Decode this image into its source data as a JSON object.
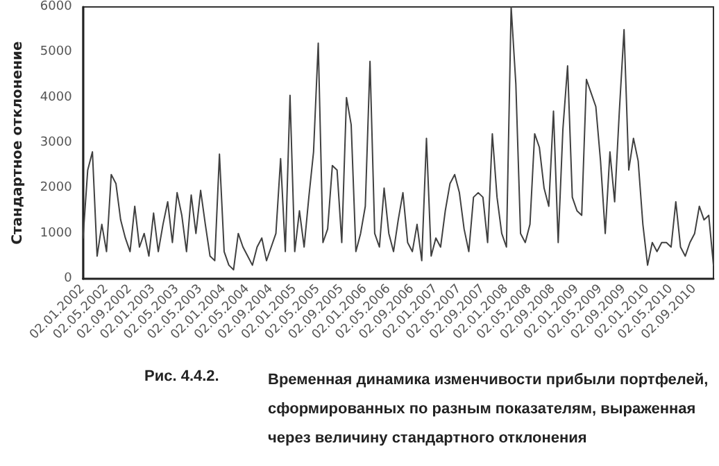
{
  "chart_data": {
    "type": "line",
    "ylabel": "Стандартное отклонение",
    "annotations": [
      "Рис. 4.4.2.",
      "Временная динамика изменчивости прибыли портфелей, сформированных по разным показателям, выраженная через величину стандартного отклонения"
    ],
    "categories": [
      "02.01.2002",
      null,
      null,
      null,
      null,
      "02.05.2002",
      null,
      null,
      null,
      null,
      "02.09.2002",
      null,
      null,
      null,
      null,
      "02.01.2003",
      null,
      null,
      null,
      null,
      "02.05.2003",
      null,
      null,
      null,
      null,
      "02.05.2003",
      null,
      null,
      null,
      null,
      "02.01.2004",
      null,
      null,
      null,
      null,
      "02.05.2004",
      null,
      null,
      null,
      null,
      "02.09.2004",
      null,
      null,
      null,
      null,
      "02.01.2005",
      null,
      null,
      null,
      null,
      "02.05.2005",
      null,
      null,
      null,
      null,
      "02.09.2005",
      null,
      null,
      null,
      null,
      "02.01.2006",
      null,
      null,
      null,
      null,
      "02.05.2006",
      null,
      null,
      null,
      null,
      "02.09.2006",
      null,
      null,
      null,
      null,
      "02.01.2007",
      null,
      null,
      null,
      null,
      "02.05.2007",
      null,
      null,
      null,
      null,
      "02.09.2007",
      null,
      null,
      null,
      null,
      "02.01.2008",
      null,
      null,
      null,
      null,
      "02.05.2008",
      null,
      null,
      null,
      null,
      "02.09.2008",
      null,
      null,
      null,
      null,
      "02.01.2009",
      null,
      null,
      null,
      null,
      "02.05.2009",
      null,
      null,
      null,
      null,
      "02.09.2009",
      null,
      null,
      null,
      null,
      "02.01.2010",
      null,
      null,
      null,
      null,
      "02.05.2010",
      null,
      null,
      null,
      null,
      "02.09.2010",
      null,
      null,
      null,
      null
    ],
    "series": [
      {
        "color": "#404040",
        "values": [
          900,
          2400,
          2800,
          500,
          1200,
          600,
          2300,
          2100,
          1300,
          900,
          600,
          1600,
          700,
          1000,
          500,
          1450,
          600,
          1200,
          1700,
          800,
          1900,
          1400,
          600,
          1850,
          1000,
          1950,
          1200,
          500,
          400,
          2750,
          600,
          300,
          200,
          1000,
          700,
          500,
          300,
          700,
          900,
          400,
          700,
          1000,
          2650,
          600,
          4050,
          600,
          1500,
          700,
          1800,
          2800,
          5200,
          800,
          1100,
          2500,
          2400,
          800,
          4000,
          3400,
          600,
          1000,
          1600,
          4800,
          1000,
          700,
          2000,
          1000,
          600,
          1300,
          1900,
          800,
          600,
          1200,
          400,
          3100,
          500,
          900,
          700,
          1500,
          2100,
          2300,
          1900,
          1100,
          600,
          1800,
          1900,
          1800,
          800,
          3200,
          1800,
          1000,
          700,
          6000,
          4300,
          1000,
          800,
          1200,
          3200,
          2900,
          2000,
          1600,
          3700,
          800,
          3300,
          4700,
          1800,
          1500,
          1400,
          4400,
          4100,
          3800,
          2600,
          1000,
          2800,
          1700,
          3700,
          5500,
          2400,
          3100,
          2600,
          1200,
          300,
          800,
          600,
          800,
          800,
          700,
          1700,
          700,
          500,
          800,
          1000,
          1600,
          1300,
          1400,
          300
        ]
      }
    ],
    "ylim": [
      0,
      6000
    ],
    "yticks": [
      0,
      1000,
      2000,
      3000,
      4000,
      5000,
      6000
    ],
    "grid": false,
    "marker": "none",
    "line_style": "solid"
  }
}
